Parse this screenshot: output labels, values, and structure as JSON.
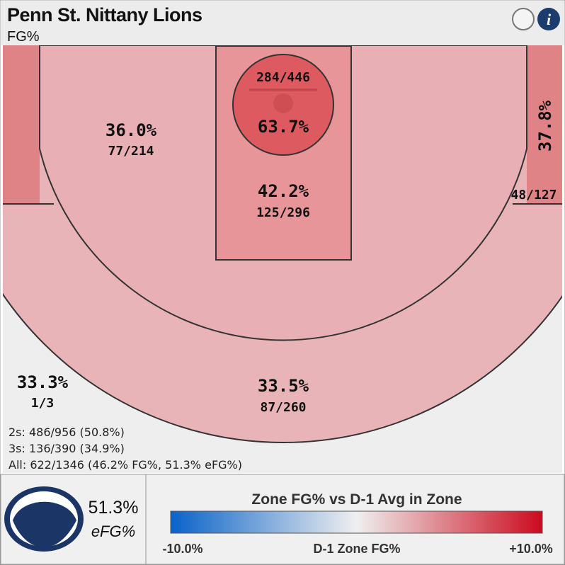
{
  "header": {
    "title": "Penn St. Nittany Lions",
    "subtitle": "FG%"
  },
  "zones": {
    "restricted": {
      "pct": "63.7%",
      "ratio": "284/446"
    },
    "paint": {
      "pct": "42.2%",
      "ratio": "125/296"
    },
    "midrange": {
      "pct": "36.0%",
      "ratio": "77/214"
    },
    "right_corner": {
      "pct": "37.8%",
      "ratio": "48/127"
    },
    "three": {
      "pct": "33.5%",
      "ratio": "87/260"
    },
    "heave": {
      "pct": "33.3%",
      "ratio": "1/3"
    }
  },
  "summary": [
    "2s: 486/956 (50.8%)",
    "3s: 136/390 (34.9%)",
    "All: 622/1346 (46.2% FG%, 51.3% eFG%)"
  ],
  "efg": {
    "value": "51.3%",
    "label": "eFG%"
  },
  "legend": {
    "title": "Zone FG% vs D-1 Avg in Zone",
    "min": "-10.0%",
    "mid": "D-1 Zone FG%",
    "max": "+10.0%"
  }
}
